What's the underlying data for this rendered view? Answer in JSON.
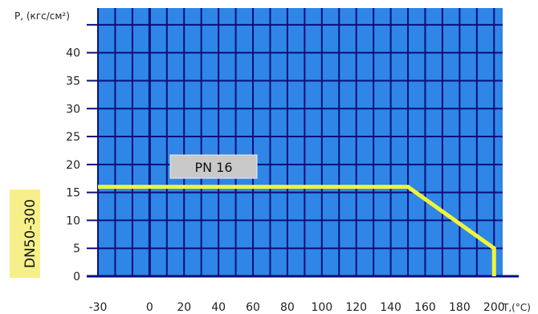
{
  "chart_data": {
    "type": "line",
    "xlabel": "T,(°C)",
    "ylabel": "P, (кгс/см²)",
    "x_ticks": [
      -30,
      0,
      20,
      40,
      60,
      80,
      100,
      120,
      140,
      160,
      180,
      200
    ],
    "y_ticks": [
      0,
      5,
      10,
      15,
      20,
      25,
      30,
      35,
      40
    ],
    "xlim": [
      -30,
      205
    ],
    "ylim": [
      0,
      48
    ],
    "grid": true,
    "series": [
      {
        "name": "PN 16",
        "x": [
          -30,
          150,
          200,
          200
        ],
        "y": [
          16,
          16,
          5,
          0
        ]
      }
    ],
    "side_label": "DN50-300",
    "colors": {
      "plot_background": "#2f86e6",
      "grid": "#0a0f7a",
      "line": "#eef53a",
      "side_band": "#f7f08a",
      "label_box": "#c9c9c9"
    }
  }
}
